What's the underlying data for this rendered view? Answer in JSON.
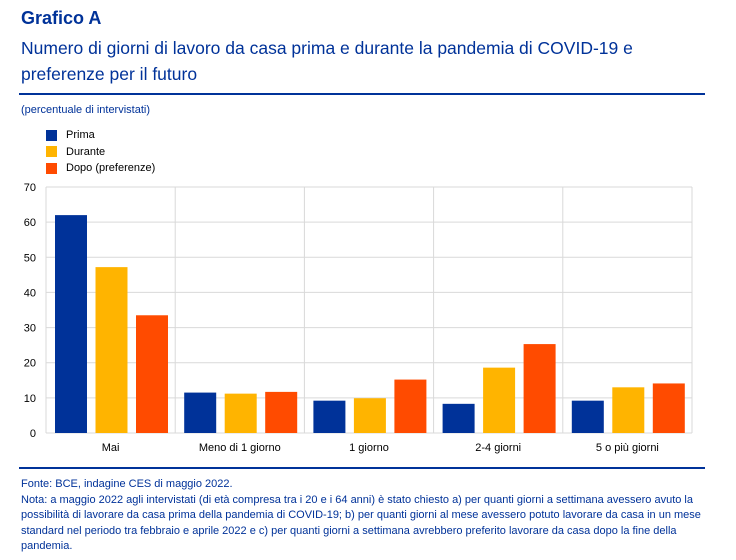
{
  "header": {
    "title": "Grafico A",
    "subtitle": "Numero di giorni di lavoro da casa prima e durante la pandemia di COVID-19 e preferenze per il futuro",
    "units": "(percentuale di intervistati)"
  },
  "chart_data": {
    "type": "bar",
    "title": "Numero di giorni di lavoro da casa prima e durante la pandemia di COVID-19 e preferenze per il futuro",
    "ylabel": "(percentuale di intervistati)",
    "xlabel": "",
    "ylim": [
      0,
      70
    ],
    "yticks": [
      0,
      10,
      20,
      30,
      40,
      50,
      60,
      70
    ],
    "grid": true,
    "legend_position": "top-left",
    "categories": [
      "Mai",
      "Meno di 1 giorno",
      "1 giorno",
      "2-4 giorni",
      "5 o più giorni"
    ],
    "series": [
      {
        "name": "Prima",
        "color": "#003299",
        "values": [
          62.0,
          11.5,
          9.2,
          8.3,
          9.2
        ]
      },
      {
        "name": "Durante",
        "color": "#FFB400",
        "values": [
          47.2,
          11.2,
          9.9,
          18.6,
          13.0
        ]
      },
      {
        "name": "Dopo (preferenze)",
        "color": "#FF4B00",
        "values": [
          33.5,
          11.7,
          15.2,
          25.3,
          14.1
        ]
      }
    ]
  },
  "footer": {
    "source": "Fonte: BCE, indagine CES di maggio 2022.",
    "note": "Nota: a maggio 2022 agli intervistati (di età compresa tra i 20 e i 64 anni) è stato chiesto a) per quanti giorni a settimana avessero avuto la possibilità di lavorare da casa prima della pandemia di COVID-19; b) per quanti giorni al mese avessero potuto lavorare da casa in un mese standard nel periodo tra febbraio e aprile 2022 e c) per quanti giorni a settimana avrebbero preferito lavorare da casa dopo la fine della pandemia."
  }
}
